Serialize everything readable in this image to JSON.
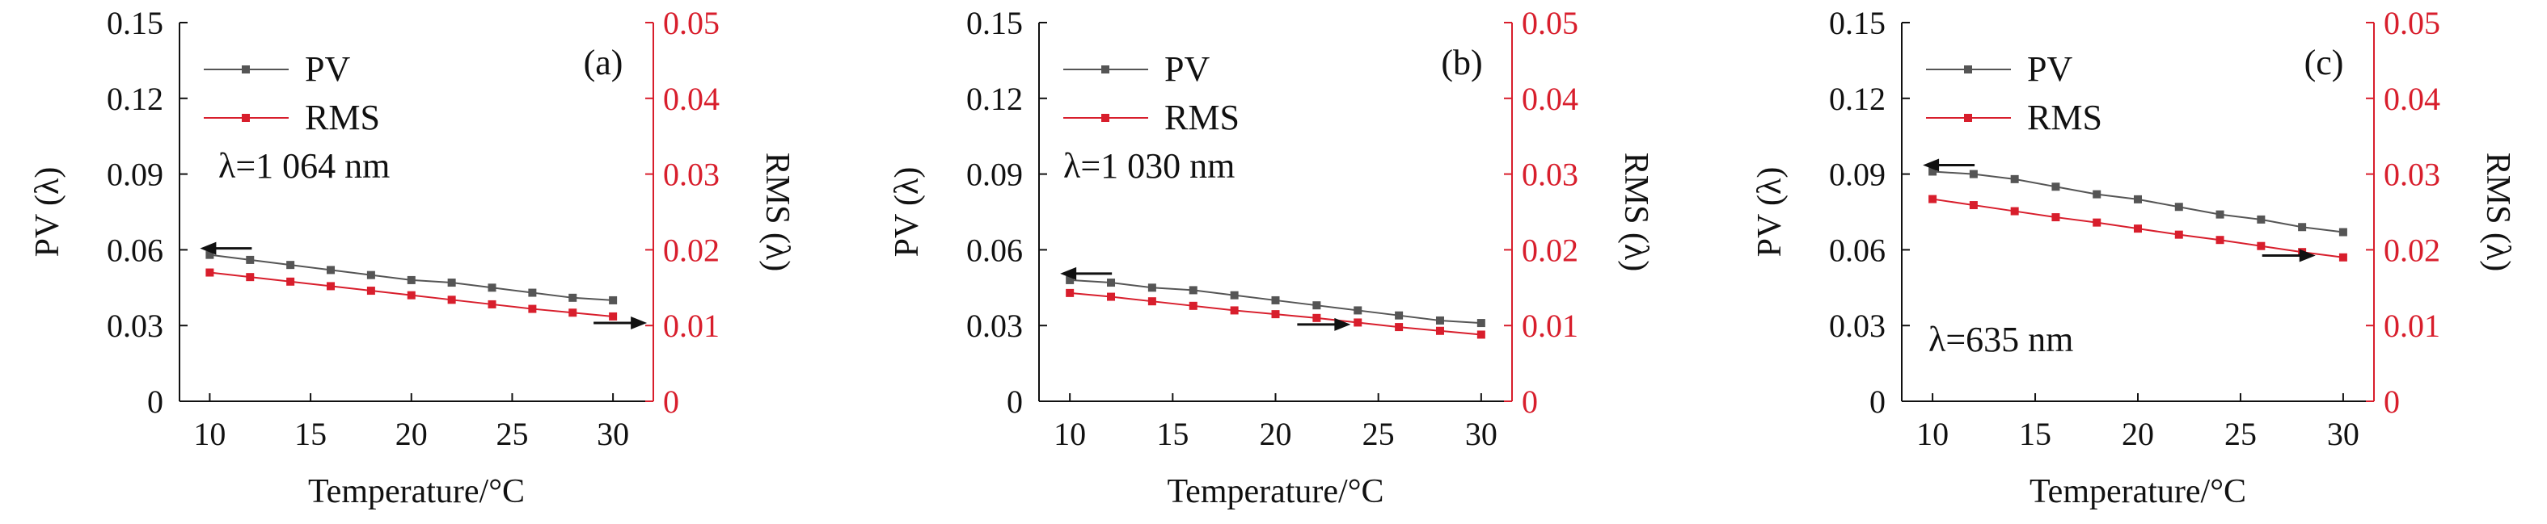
{
  "figure": {
    "colors": {
      "pv": "#555555",
      "rms": "#d81e2c",
      "axis": "#111111",
      "arrow": "#111111"
    },
    "legend": {
      "pv": "PV",
      "rms": "RMS"
    }
  },
  "chart_data": [
    {
      "type": "line",
      "panel_label": "(a)",
      "annotation": "λ=1 064 nm",
      "xlabel": "Temperature/°C",
      "ylabel": "PV (λ)",
      "y2label": "RMS (λ)",
      "xlim": [
        8.5,
        32
      ],
      "ylim": [
        0,
        0.15
      ],
      "y2lim": [
        0,
        0.05
      ],
      "xticks": [
        "10",
        "15",
        "20",
        "25",
        "30"
      ],
      "yticks": [
        "0",
        "0.03",
        "0.06",
        "0.09",
        "0.12",
        "0.15"
      ],
      "y2ticks": [
        "0",
        "0.01",
        "0.02",
        "0.03",
        "0.04",
        "0.05"
      ],
      "x": [
        10,
        12,
        14,
        16,
        18,
        20,
        22,
        24,
        26,
        28,
        30
      ],
      "series": [
        {
          "name": "PV",
          "axis": "left",
          "values": [
            0.058,
            0.056,
            0.054,
            0.052,
            0.05,
            0.048,
            0.047,
            0.045,
            0.043,
            0.041,
            0.04
          ]
        },
        {
          "name": "RMS",
          "axis": "right",
          "values": [
            0.017,
            0.0164,
            0.0158,
            0.0152,
            0.0146,
            0.014,
            0.0134,
            0.0128,
            0.0122,
            0.0117,
            0.0112
          ]
        }
      ],
      "arrows": [
        {
          "series": "PV",
          "direction": "left",
          "x": 10
        },
        {
          "series": "RMS",
          "direction": "right",
          "x": 30
        }
      ]
    },
    {
      "type": "line",
      "panel_label": "(b)",
      "annotation": "λ=1 030 nm",
      "xlabel": "Temperature/°C",
      "ylabel": "PV (λ)",
      "y2label": "RMS (λ)",
      "xlim": [
        8.5,
        31.5
      ],
      "ylim": [
        0,
        0.15
      ],
      "y2lim": [
        0,
        0.05
      ],
      "xticks": [
        "10",
        "15",
        "20",
        "25",
        "30"
      ],
      "yticks": [
        "0",
        "0.03",
        "0.06",
        "0.09",
        "0.12",
        "0.15"
      ],
      "y2ticks": [
        "0",
        "0.01",
        "0.02",
        "0.03",
        "0.04",
        "0.05"
      ],
      "x": [
        10,
        12,
        14,
        16,
        18,
        20,
        22,
        24,
        26,
        28,
        30
      ],
      "series": [
        {
          "name": "PV",
          "axis": "left",
          "values": [
            0.048,
            0.047,
            0.045,
            0.044,
            0.042,
            0.04,
            0.038,
            0.036,
            0.034,
            0.032,
            0.031
          ]
        },
        {
          "name": "RMS",
          "axis": "right",
          "values": [
            0.0143,
            0.0138,
            0.0132,
            0.0126,
            0.012,
            0.0115,
            0.011,
            0.0104,
            0.0098,
            0.0093,
            0.0088
          ]
        }
      ],
      "arrows": [
        {
          "series": "PV",
          "direction": "left",
          "x": 10
        },
        {
          "series": "RMS",
          "direction": "right",
          "x": 22
        }
      ]
    },
    {
      "type": "line",
      "panel_label": "(c)",
      "annotation": "λ=635 nm",
      "xlabel": "Temperature/°C",
      "ylabel": "PV (λ)",
      "y2label": "RMS (λ)",
      "xlim": [
        8.5,
        31.5
      ],
      "ylim": [
        0,
        0.15
      ],
      "y2lim": [
        0,
        0.05
      ],
      "xticks": [
        "10",
        "15",
        "20",
        "25",
        "30"
      ],
      "yticks": [
        "0",
        "0.03",
        "0.06",
        "0.09",
        "0.12",
        "0.15"
      ],
      "y2ticks": [
        "0",
        "0.01",
        "0.02",
        "0.03",
        "0.04",
        "0.05"
      ],
      "x": [
        10,
        12,
        14,
        16,
        18,
        20,
        22,
        24,
        26,
        28,
        30
      ],
      "series": [
        {
          "name": "PV",
          "axis": "left",
          "values": [
            0.091,
            0.09,
            0.088,
            0.085,
            0.082,
            0.08,
            0.077,
            0.074,
            0.072,
            0.069,
            0.067
          ]
        },
        {
          "name": "RMS",
          "axis": "right",
          "values": [
            0.0267,
            0.0259,
            0.0251,
            0.0243,
            0.0236,
            0.0228,
            0.022,
            0.0213,
            0.0205,
            0.0197,
            0.019
          ]
        }
      ],
      "arrows": [
        {
          "series": "PV",
          "direction": "left",
          "x": 10
        },
        {
          "series": "RMS",
          "direction": "right",
          "x": 27
        }
      ]
    }
  ]
}
